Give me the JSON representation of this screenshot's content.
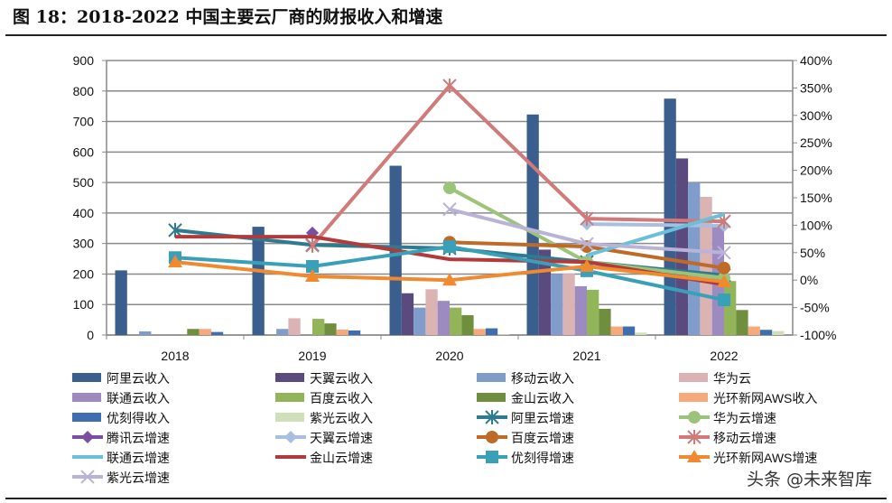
{
  "title": "图 18：2018-2022 中国主要云厂商的财报收入和增速",
  "watermark": "头条 @未来智库",
  "chart_data": {
    "type": "bar+line",
    "categories": [
      "2018",
      "2019",
      "2020",
      "2021",
      "2022"
    ],
    "y_left": {
      "ylim": [
        0,
        900
      ],
      "ticks": [
        "0",
        "100",
        "200",
        "300",
        "400",
        "500",
        "600",
        "700",
        "800",
        "900"
      ]
    },
    "y_right": {
      "ylim": [
        -100,
        400
      ],
      "ticks": [
        "-100%",
        "-50%",
        "0%",
        "50%",
        "100%",
        "150%",
        "200%",
        "250%",
        "300%",
        "350%",
        "400%"
      ]
    },
    "grid": true,
    "legend": "bottom",
    "bar_series": [
      {
        "name": "阿里云收入",
        "color": "#3a5f8f",
        "values": [
          212,
          355,
          555,
          723,
          775
        ]
      },
      {
        "name": "天翼云收入",
        "color": "#5b4a7e",
        "values": [
          null,
          null,
          137,
          280,
          579
        ]
      },
      {
        "name": "移动云收入",
        "color": "#7f9ccb",
        "values": [
          12,
          20,
          90,
          200,
          500
        ]
      },
      {
        "name": "华为云",
        "color": "#dcb3b3",
        "values": [
          null,
          55,
          150,
          201,
          453
        ]
      },
      {
        "name": "联通云收入",
        "color": "#9d8ac0",
        "values": [
          null,
          null,
          112,
          160,
          360
        ]
      },
      {
        "name": "百度云收入",
        "color": "#93b55a",
        "values": [
          null,
          53,
          90,
          148,
          177
        ]
      },
      {
        "name": "金山云收入",
        "color": "#6f8f3f",
        "values": [
          20,
          38,
          65,
          86,
          82
        ]
      },
      {
        "name": "光环新网AWS收入",
        "color": "#f6a97b",
        "values": [
          20,
          18,
          20,
          28,
          28
        ]
      },
      {
        "name": "优刻得收入",
        "color": "#3e6db0",
        "values": [
          10,
          15,
          22,
          28,
          17
        ]
      },
      {
        "name": "紫光云收入",
        "color": "#cfe0b8",
        "values": [
          null,
          null,
          2,
          8,
          13
        ]
      }
    ],
    "line_series": [
      {
        "name": "阿里云增速",
        "color": "#2e7b8f",
        "marker": "star",
        "values": [
          91,
          64,
          58,
          33,
          9
        ]
      },
      {
        "name": "华为云增速",
        "color": "#9bc47a",
        "marker": "circle",
        "values": [
          null,
          null,
          168,
          33,
          4
        ]
      },
      {
        "name": "腾讯云增速",
        "color": "#7a4ea0",
        "marker": "diamond",
        "values": [
          null,
          86,
          null,
          null,
          null
        ]
      },
      {
        "name": "天翼云增速",
        "color": "#a8bfe0",
        "marker": "diamond",
        "values": [
          null,
          null,
          null,
          102,
          99
        ]
      },
      {
        "name": "百度云增速",
        "color": "#c06a28",
        "marker": "circle",
        "values": [
          null,
          null,
          69,
          61,
          22
        ]
      },
      {
        "name": "移动云增速",
        "color": "#d07a7a",
        "marker": "star",
        "values": [
          null,
          63,
          354,
          112,
          107
        ]
      },
      {
        "name": "联通云增速",
        "color": "#6bbfd8",
        "marker": "none",
        "values": [
          null,
          null,
          null,
          45,
          120
        ]
      },
      {
        "name": "金山云增速",
        "color": "#b33a3a",
        "marker": "none",
        "values": [
          79,
          79,
          38,
          33,
          -8
        ]
      },
      {
        "name": "优刻得增速",
        "color": "#3aa0b8",
        "marker": "square",
        "values": [
          41,
          25,
          61,
          17,
          -36
        ]
      },
      {
        "name": "光环新网AWS增速",
        "color": "#f08a30",
        "marker": "triangle",
        "values": [
          33,
          7,
          0,
          25,
          -3
        ]
      },
      {
        "name": "紫光云增速",
        "color": "#b9b3d8",
        "marker": "x",
        "values": [
          null,
          null,
          129,
          66,
          50
        ]
      }
    ]
  }
}
